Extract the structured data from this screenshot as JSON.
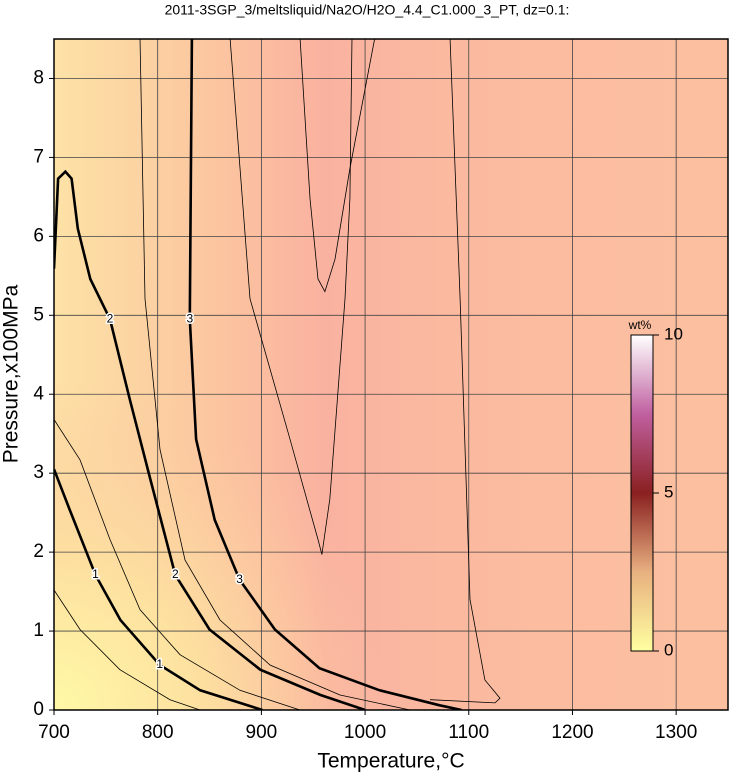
{
  "chart_data": {
    "type": "contour",
    "title": "2011-3SGP_3/meltsliquid/Na2O/H2O_4.4_C1.000_3_PT, dz=0.1:",
    "x_label": "Temperature,°C",
    "y_label": "Pressure,x100MPa",
    "xlim": [
      700,
      1350
    ],
    "ylim": [
      0,
      8.5
    ],
    "xticks": [
      700,
      800,
      900,
      1000,
      1100,
      1200,
      1300
    ],
    "yticks": [
      0,
      1,
      2,
      3,
      4,
      5,
      6,
      7,
      8
    ],
    "grid": true,
    "colorbar_label": "wt%",
    "colorbar_lim": [
      0,
      10
    ],
    "colorbar_ticks": [
      0,
      5,
      10
    ],
    "contours": [
      {
        "level": 1,
        "x": [
          700,
          715,
          740,
          764,
          802,
          841,
          901
        ],
        "y": [
          3.05,
          2.54,
          1.71,
          1.14,
          0.57,
          0.25,
          0
        ]
      },
      {
        "level": 2,
        "x": [
          700,
          704,
          711,
          717,
          723,
          735,
          754,
          773,
          793,
          817,
          850,
          899,
          957,
          1000
        ],
        "y": [
          5.59,
          6.73,
          6.82,
          6.73,
          6.1,
          5.46,
          4.95,
          3.94,
          2.92,
          1.71,
          1.02,
          0.51,
          0.19,
          0
        ]
      },
      {
        "level": 3,
        "x": [
          833,
          831,
          837,
          855,
          879,
          913,
          956,
          1014,
          1072,
          1093
        ],
        "y": [
          8.52,
          4.95,
          3.43,
          2.41,
          1.65,
          1.02,
          0.53,
          0.25,
          0.06,
          0
        ]
      },
      {
        "level": 0.5,
        "x": [
          700,
          725.1,
          763.6,
          811.9,
          840.8
        ],
        "y": [
          1.52,
          1.02,
          0.51,
          0.13,
          0
        ]
      },
      {
        "level": 1.5,
        "x": [
          700,
          725.1,
          754,
          782.9,
          821.5,
          879.4,
          937.2
        ],
        "y": [
          3.68,
          3.17,
          2.16,
          1.27,
          0.7,
          0.25,
          0
        ]
      },
      {
        "level": 2.5,
        "x": [
          782.9,
          787.8,
          802.2,
          826.3,
          860.1,
          908.3,
          975.8,
          1043.3
        ],
        "y": [
          8.52,
          5.21,
          3.3,
          1.9,
          1.14,
          0.57,
          0.19,
          0
        ]
      },
      {
        "level": 3.3,
        "x": [
          869.7,
          889,
          927.6,
          954.6,
          958.4,
          966,
          980.6,
          985.4,
          987.4
        ],
        "y": [
          8.52,
          5.21,
          3.43,
          2.16,
          1.97,
          2.67,
          5.21,
          6.48,
          8.52
        ]
      },
      {
        "level": 3.5,
        "x": [
          937.2,
          946.9,
          954.6,
          961.3,
          971,
          985.4,
          1009.5
        ],
        "y": [
          8.52,
          6.48,
          5.46,
          5.3,
          5.71,
          6.86,
          8.52
        ]
      },
      {
        "level": 3.1,
        "x": [
          1081.9,
          1091.6,
          1101.2,
          1115.6,
          1130.1,
          1125.3,
          1062.6
        ],
        "y": [
          8.52,
          5.21,
          1.4,
          0.38,
          0.15,
          0.09,
          0.13
        ]
      }
    ]
  }
}
